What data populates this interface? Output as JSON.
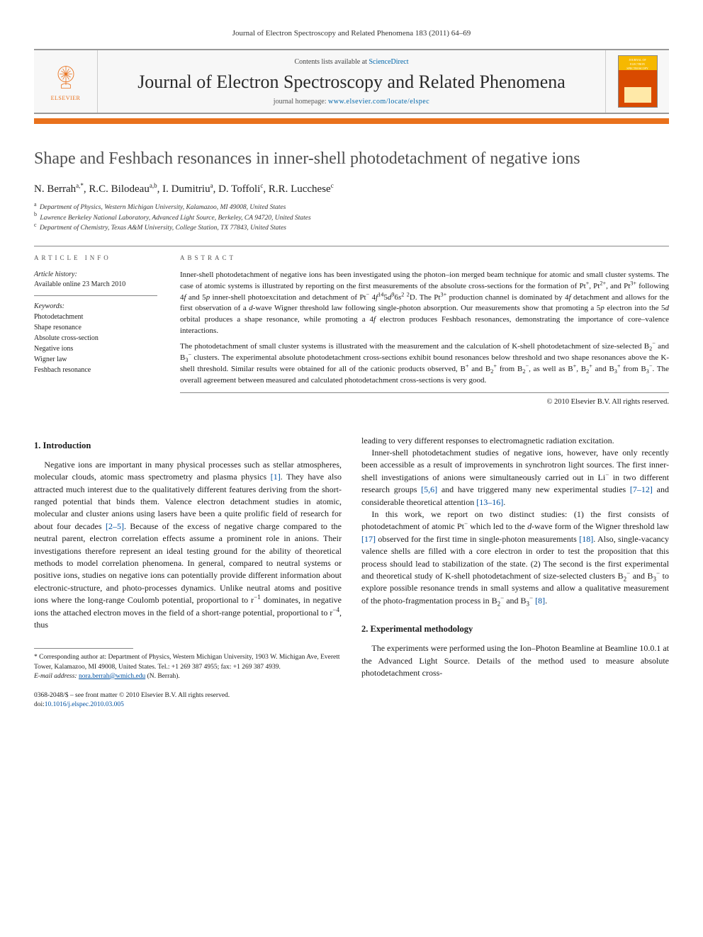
{
  "header_citation": "Journal of Electron Spectroscopy and Related Phenomena 183 (2011) 64–69",
  "masthead": {
    "contents_prefix": "Contents lists available at ",
    "contents_link": "ScienceDirect",
    "journal_name": "Journal of Electron Spectroscopy and Related Phenomena",
    "homepage_prefix": "journal homepage: ",
    "homepage_url": "www.elsevier.com/locate/elspec",
    "publisher_label": "ELSEVIER",
    "cover_text_1": "JOURNAL OF",
    "cover_text_2": "ELECTRON",
    "cover_text_3": "SPECTROSCOPY"
  },
  "title": "Shape and Feshbach resonances in inner-shell photodetachment of negative ions",
  "authors_html": "N. Berrah<sup>a,*</sup>, R.C. Bilodeau<sup>a,b</sup>, I. Dumitriu<sup>a</sup>, D. Toffoli<sup>c</sup>, R.R. Lucchese<sup>c</sup>",
  "affiliations": [
    {
      "key": "a",
      "text": "Department of Physics, Western Michigan University, Kalamazoo, MI 49008, United States"
    },
    {
      "key": "b",
      "text": "Lawrence Berkeley National Laboratory, Advanced Light Source, Berkeley, CA 94720, United States"
    },
    {
      "key": "c",
      "text": "Department of Chemistry, Texas A&M University, College Station, TX 77843, United States"
    }
  ],
  "info": {
    "heading": "ARTICLE INFO",
    "history_label": "Article history:",
    "history_value": "Available online 23 March 2010",
    "keywords_label": "Keywords:",
    "keywords": [
      "Photodetachment",
      "Shape resonance",
      "Absolute cross-section",
      "Negative ions",
      "Wigner law",
      "Feshbach resonance"
    ]
  },
  "abstract": {
    "heading": "ABSTRACT",
    "p1_html": "Inner-shell photodetachment of negative ions has been investigated using the photon–ion merged beam technique for atomic and small cluster systems. The case of atomic systems is illustrated by reporting on the first measurements of the absolute cross-sections for the formation of Pt<sup>+</sup>, Pt<sup>2+</sup>, and Pt<sup>3+</sup> following 4<i>f</i> and 5<i>p</i> inner-shell photoexcitation and detachment of Pt<sup>−</sup> 4<i>f</i><sup>14</sup>5<i>d</i><sup>9</sup>6<i>s</i><sup>2</sup> <sup>2</sup>D. The Pt<sup>3+</sup> production channel is dominated by 4<i>f</i> detachment and allows for the first observation of a <i>d</i>-wave Wigner threshold law following single-photon absorption. Our measurements show that promoting a 5<i>p</i> electron into the 5<i>d</i> orbital produces a shape resonance, while promoting a 4<i>f</i> electron produces Feshbach resonances, demonstrating the importance of core–valence interactions.",
    "p2_html": "The photodetachment of small cluster systems is illustrated with the measurement and the calculation of K-shell photodetachment of size-selected B<sub>2</sub><sup>−</sup> and B<sub>3</sub><sup>−</sup> clusters. The experimental absolute photodetachment cross-sections exhibit bound resonances below threshold and two shape resonances above the K-shell threshold. Similar results were obtained for all of the cationic products observed, B<sup>+</sup> and B<sub>2</sub><sup>+</sup> from B<sub>2</sub><sup>−</sup>, as well as B<sup>+</sup>, B<sub>2</sub><sup>+</sup> and B<sub>3</sub><sup>+</sup> from B<sub>3</sub><sup>−</sup>. The overall agreement between measured and calculated photodetachment cross-sections is very good.",
    "copyright": "© 2010 Elsevier B.V. All rights reserved."
  },
  "body": {
    "sec1_heading": "1.  Introduction",
    "sec1_p1_html": "Negative ions are important in many physical processes such as stellar atmospheres, molecular clouds, atomic mass spectrometry and plasma physics <span class=\"ref\">[1]</span>. They have also attracted much interest due to the qualitatively different features deriving from the short-ranged potential that binds them. Valence electron detachment studies in atomic, molecular and cluster anions using lasers have been a quite prolific field of research for about four decades <span class=\"ref\">[2–5]</span>. Because of the excess of negative charge compared to the neutral parent, electron correlation effects assume a prominent role in anions. Their investigations therefore represent an ideal testing ground for the ability of theoretical methods to model correlation phenomena. In general, compared to neutral systems or positive ions, studies on negative ions can potentially provide different information about electronic-structure, and photo-processes dynamics. Unlike neutral atoms and positive ions where the long-range Coulomb potential, proportional to r<sup>−1</sup> dominates, in negative ions the attached electron moves in the field of a short-range potential, proportional to r<sup>−4</sup>, thus",
    "col2_p1": "leading to very different responses to electromagnetic radiation excitation.",
    "col2_p2_html": "Inner-shell photodetachment studies of negative ions, however, have only recently been accessible as a result of improvements in synchrotron light sources. The first inner-shell investigations of anions were simultaneously carried out in Li<sup>−</sup> in two different research groups <span class=\"ref\">[5,6]</span> and have triggered many new experimental studies <span class=\"ref\">[7–12]</span> and considerable theoretical attention <span class=\"ref\">[13–16]</span>.",
    "col2_p3_html": "In this work, we report on two distinct studies: (1) the first consists of photodetachment of atomic Pt<sup>−</sup> which led to the <i>d</i>-wave form of the Wigner threshold law <span class=\"ref\">[17]</span> observed for the first time in single-photon measurements <span class=\"ref\">[18]</span>. Also, single-vacancy valence shells are filled with a core electron in order to test the proposition that this process should lead to stabilization of the state. (2) The second is the first experimental and theoretical study of K-shell photodetachment of size-selected clusters B<sub>2</sub><sup>−</sup> and B<sub>3</sub><sup>−</sup> to explore possible resonance trends in small systems and allow a qualitative measurement of the photo-fragmentation process in B<sub>2</sub><sup>−</sup> and B<sub>3</sub><sup>−</sup> <span class=\"ref\">[8]</span>.",
    "sec2_heading": "2.  Experimental methodology",
    "sec2_p1": "The experiments were performed using the Ion–Photon Beamline at Beamline 10.0.1 at the Advanced Light Source. Details of the method used to measure absolute photodetachment cross-"
  },
  "footnote": {
    "corr_html": "* Corresponding author at: Department of Physics, Western Michigan University, 1903 W. Michigan Ave, Everett Tower, Kalamazoo, MI 49008, United States. Tel.: +1 269 387 4955; fax: +1 269 387 4939.",
    "email_label": "E-mail address:",
    "email": "nora.berrah@wmich.edu",
    "email_who": "(N. Berrah)."
  },
  "doi": {
    "line1": "0368-2048/$ – see front matter © 2010 Elsevier B.V. All rights reserved.",
    "line2_prefix": "doi:",
    "line2_link": "10.1016/j.elspec.2010.03.005"
  },
  "colors": {
    "accent_orange": "#e9711c",
    "link": "#0050a0",
    "rule_gray": "#888888",
    "text": "#1a1a1a",
    "bg": "#ffffff"
  }
}
